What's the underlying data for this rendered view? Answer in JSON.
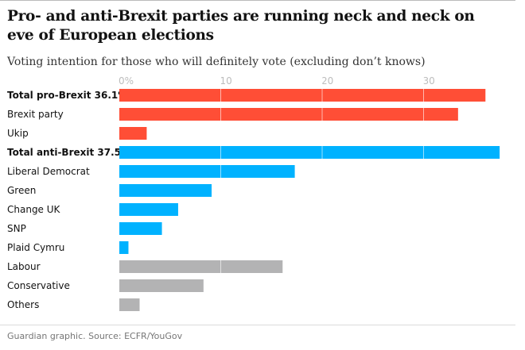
{
  "title": "Pro- and anti-Brexit parties are running neck and neck on eve of European elections",
  "subtitle": "Voting intention for those who will definitely vote (excluding don’t knows)",
  "source": "Guardian graphic. Source: ECFR/YouGov",
  "chart_data": {
    "type": "bar",
    "orientation": "horizontal",
    "xlim": [
      0,
      38
    ],
    "ticks": [
      {
        "v": 0,
        "label": "0%"
      },
      {
        "v": 10,
        "label": "10"
      },
      {
        "v": 20,
        "label": "20"
      },
      {
        "v": 30,
        "label": "30"
      }
    ],
    "grid": true,
    "colors": {
      "pro": "#ff4e36",
      "anti": "#00b2ff",
      "other": "#b3b3b4"
    },
    "bars": [
      {
        "label": "Total pro-Brexit 36.1%",
        "value": 36.1,
        "group": "pro",
        "bold": true
      },
      {
        "label": "Brexit party",
        "value": 33.4,
        "group": "pro",
        "bold": false
      },
      {
        "label": "Ukip",
        "value": 2.7,
        "group": "pro",
        "bold": false
      },
      {
        "label": "Total anti-Brexit 37.5%",
        "value": 37.5,
        "group": "anti",
        "bold": true
      },
      {
        "label": "Liberal Democrat",
        "value": 17.3,
        "group": "anti",
        "bold": false
      },
      {
        "label": "Green",
        "value": 9.1,
        "group": "anti",
        "bold": false
      },
      {
        "label": "Change UK",
        "value": 5.8,
        "group": "anti",
        "bold": false
      },
      {
        "label": "SNP",
        "value": 4.2,
        "group": "anti",
        "bold": false
      },
      {
        "label": "Plaid Cymru",
        "value": 0.9,
        "group": "anti",
        "bold": false
      },
      {
        "label": "Labour",
        "value": 16.1,
        "group": "other",
        "bold": false
      },
      {
        "label": "Conservative",
        "value": 8.3,
        "group": "other",
        "bold": false
      },
      {
        "label": "Others",
        "value": 2.0,
        "group": "other",
        "bold": false
      }
    ]
  }
}
